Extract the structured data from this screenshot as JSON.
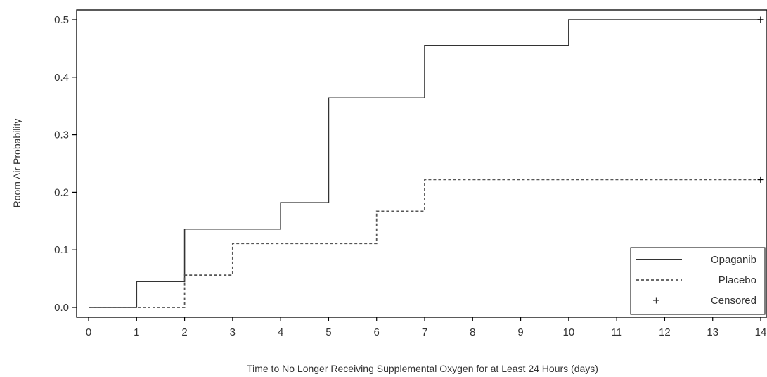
{
  "chart_data": {
    "type": "line",
    "title": "",
    "xlabel": "Time to No Longer Receiving Supplemental Oxygen for at Least 24 Hours (days)",
    "ylabel": "Room Air Probability",
    "xlim": [
      0,
      14
    ],
    "ylim": [
      0,
      0.5
    ],
    "x_ticks": [
      "0",
      "1",
      "2",
      "3",
      "4",
      "5",
      "6",
      "7",
      "8",
      "9",
      "10",
      "11",
      "12",
      "13",
      "14"
    ],
    "y_ticks": [
      "0.0",
      "0.1",
      "0.2",
      "0.3",
      "0.4",
      "0.5"
    ],
    "grid": false,
    "step": true,
    "legend_position": "bottom-right",
    "series": [
      {
        "name": "Opaganib",
        "style": "solid",
        "color": "#333333",
        "x": [
          0,
          1,
          2,
          4,
          5,
          7,
          10,
          14
        ],
        "y": [
          0.0,
          0.045,
          0.136,
          0.182,
          0.364,
          0.455,
          0.5,
          0.5
        ],
        "censored": [
          {
            "x": 14,
            "y": 0.5
          }
        ]
      },
      {
        "name": "Placebo",
        "style": "dashed",
        "color": "#555555",
        "x": [
          0,
          2,
          3,
          6,
          7,
          14
        ],
        "y": [
          0.0,
          0.056,
          0.111,
          0.167,
          0.222,
          0.222
        ],
        "censored": [
          {
            "x": 14,
            "y": 0.222
          }
        ]
      }
    ],
    "legend": [
      {
        "label": "Opaganib",
        "style": "solid"
      },
      {
        "label": "Placebo",
        "style": "dashed"
      },
      {
        "label": "Censored",
        "style": "marker"
      }
    ]
  }
}
